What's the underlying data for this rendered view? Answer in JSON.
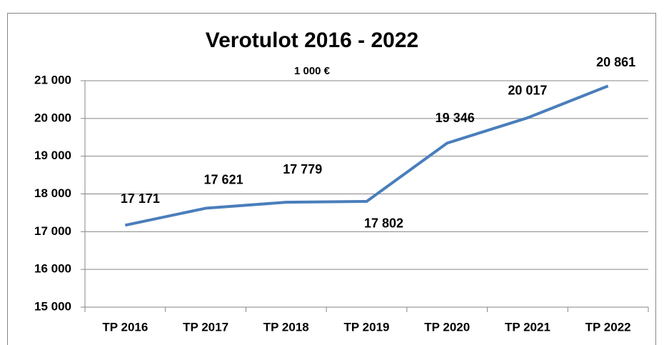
{
  "chart_data": {
    "type": "line",
    "title": "Verotulot 2016 - 2022",
    "subtitle": "1 000 €",
    "categories": [
      "TP 2016",
      "TP 2017",
      "TP 2018",
      "TP 2019",
      "TP 2020",
      "TP 2021",
      "TP 2022"
    ],
    "series": [
      {
        "name": "Verotulot",
        "color": "#4a7ebb",
        "values": [
          17171,
          17621,
          17779,
          17802,
          19346,
          20017,
          20861
        ],
        "value_labels": [
          "17 171",
          "17 621",
          "17 779",
          "17 802",
          "19 346",
          "20 017",
          "20 861"
        ]
      }
    ],
    "ylim": [
      15000,
      21000
    ],
    "yticks": [
      {
        "value": 15000,
        "label": "15 000"
      },
      {
        "value": 16000,
        "label": "16 000"
      },
      {
        "value": 17000,
        "label": "17 000"
      },
      {
        "value": 18000,
        "label": "18 000"
      },
      {
        "value": 19000,
        "label": "19 000"
      },
      {
        "value": 20000,
        "label": "20 000"
      },
      {
        "value": 21000,
        "label": "21 000"
      }
    ],
    "grid": true,
    "legend": false
  }
}
